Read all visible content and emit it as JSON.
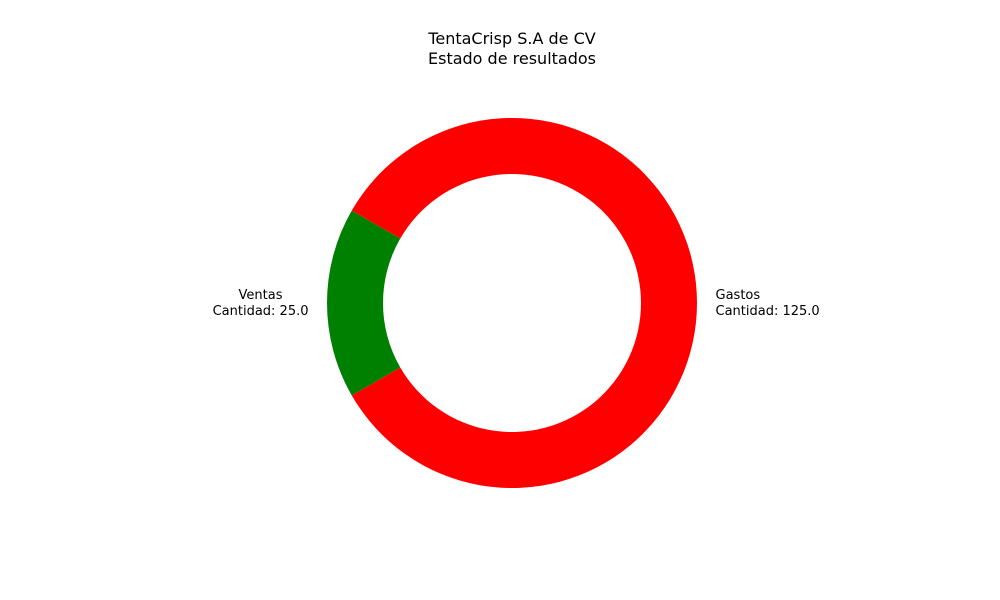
{
  "chart_data": {
    "type": "pie",
    "variant": "donut",
    "title": "TentaCrisp S.A de CV",
    "subtitle": "Estado de resultados",
    "slices": [
      {
        "label": "Ventas",
        "detail": "Cantidad: 25.0",
        "value": 25.0,
        "color": "#008000"
      },
      {
        "label": "Gastos",
        "detail": "Cantidad: 125.0",
        "value": 125.0,
        "color": "#ff0000"
      }
    ],
    "legend": "none"
  }
}
